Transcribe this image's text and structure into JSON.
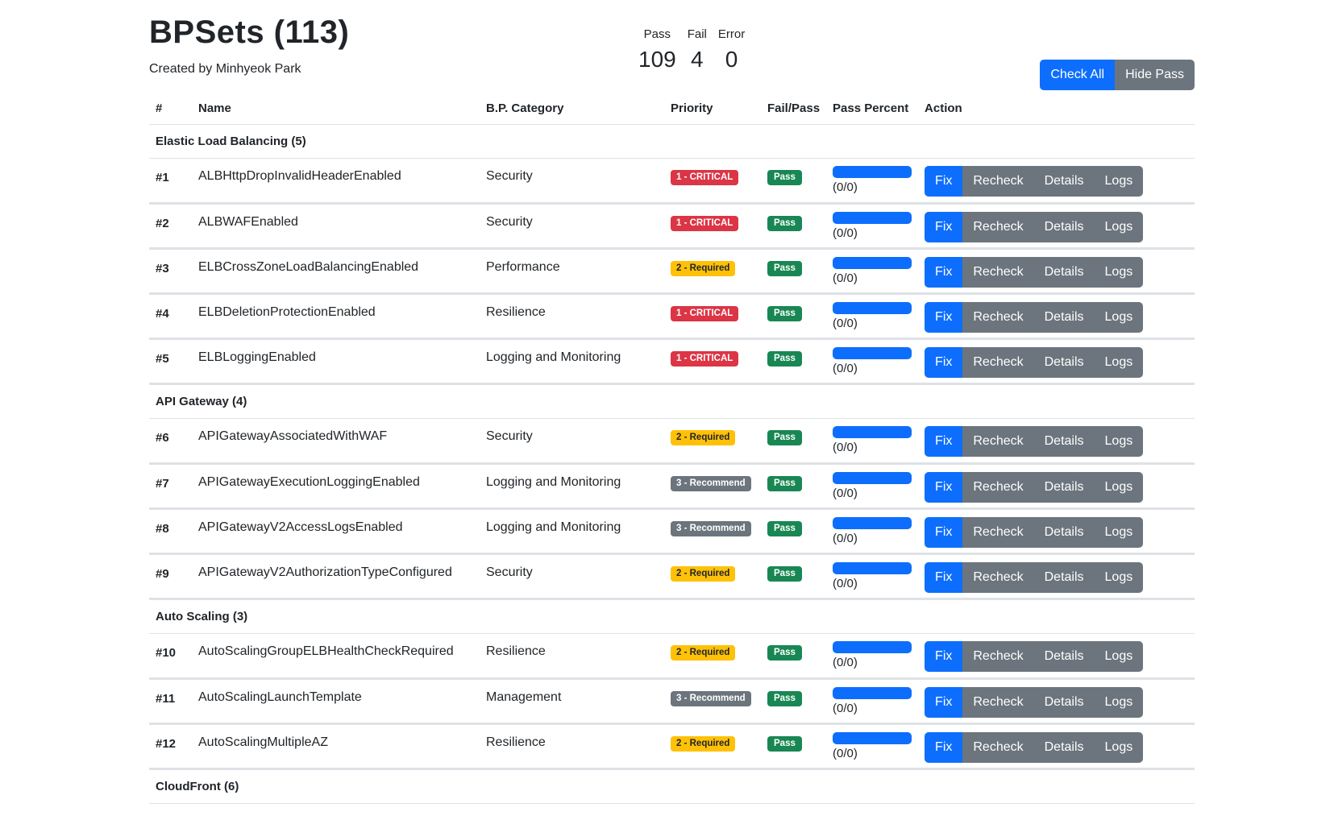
{
  "header": {
    "title": "BPSets (113)",
    "subtitle": "Created by Minhyeok Park",
    "stats": [
      {
        "label": "Pass",
        "value": "109"
      },
      {
        "label": "Fail",
        "value": "4"
      },
      {
        "label": "Error",
        "value": "0"
      }
    ],
    "check_all_label": "Check All",
    "hide_pass_label": "Hide Pass"
  },
  "columns": [
    "#",
    "Name",
    "B.P. Category",
    "Priority",
    "Fail/Pass",
    "Pass Percent",
    "Action"
  ],
  "action_labels": {
    "fix": "Fix",
    "recheck": "Recheck",
    "details": "Details",
    "logs": "Logs"
  },
  "colors": {
    "primary": "#0d6efd",
    "secondary": "#6c757d",
    "critical": "#dc3545",
    "required": "#ffc107",
    "recommend": "#6c757d",
    "pass": "#198754"
  },
  "groups": [
    {
      "name": "Elastic Load Balancing (5)",
      "rows": [
        {
          "idx": "#1",
          "name": "ALBHttpDropInvalidHeaderEnabled",
          "category": "Security",
          "priority": "1 - CRITICAL",
          "level": "crit",
          "status": "Pass",
          "pass_fraction": 1,
          "pct": "(0/0)"
        },
        {
          "idx": "#2",
          "name": "ALBWAFEnabled",
          "category": "Security",
          "priority": "1 - CRITICAL",
          "level": "crit",
          "status": "Pass",
          "pass_fraction": 1,
          "pct": "(0/0)"
        },
        {
          "idx": "#3",
          "name": "ELBCrossZoneLoadBalancingEnabled",
          "category": "Performance",
          "priority": "2 - Required",
          "level": "req",
          "status": "Pass",
          "pass_fraction": 1,
          "pct": "(0/0)"
        },
        {
          "idx": "#4",
          "name": "ELBDeletionProtectionEnabled",
          "category": "Resilience",
          "priority": "1 - CRITICAL",
          "level": "crit",
          "status": "Pass",
          "pass_fraction": 1,
          "pct": "(0/0)"
        },
        {
          "idx": "#5",
          "name": "ELBLoggingEnabled",
          "category": "Logging and Monitoring",
          "priority": "1 - CRITICAL",
          "level": "crit",
          "status": "Pass",
          "pass_fraction": 1,
          "pct": "(0/0)"
        }
      ]
    },
    {
      "name": "API Gateway (4)",
      "rows": [
        {
          "idx": "#6",
          "name": "APIGatewayAssociatedWithWAF",
          "category": "Security",
          "priority": "2 - Required",
          "level": "req",
          "status": "Pass",
          "pass_fraction": 1,
          "pct": "(0/0)"
        },
        {
          "idx": "#7",
          "name": "APIGatewayExecutionLoggingEnabled",
          "category": "Logging and Monitoring",
          "priority": "3 - Recommend",
          "level": "rec",
          "status": "Pass",
          "pass_fraction": 1,
          "pct": "(0/0)"
        },
        {
          "idx": "#8",
          "name": "APIGatewayV2AccessLogsEnabled",
          "category": "Logging and Monitoring",
          "priority": "3 - Recommend",
          "level": "rec",
          "status": "Pass",
          "pass_fraction": 1,
          "pct": "(0/0)"
        },
        {
          "idx": "#9",
          "name": "APIGatewayV2AuthorizationTypeConfigured",
          "category": "Security",
          "priority": "2 - Required",
          "level": "req",
          "status": "Pass",
          "pass_fraction": 1,
          "pct": "(0/0)"
        }
      ]
    },
    {
      "name": "Auto Scaling (3)",
      "rows": [
        {
          "idx": "#10",
          "name": "AutoScalingGroupELBHealthCheckRequired",
          "category": "Resilience",
          "priority": "2 - Required",
          "level": "req",
          "status": "Pass",
          "pass_fraction": 1,
          "pct": "(0/0)"
        },
        {
          "idx": "#11",
          "name": "AutoScalingLaunchTemplate",
          "category": "Management",
          "priority": "3 - Recommend",
          "level": "rec",
          "status": "Pass",
          "pass_fraction": 1,
          "pct": "(0/0)"
        },
        {
          "idx": "#12",
          "name": "AutoScalingMultipleAZ",
          "category": "Resilience",
          "priority": "2 - Required",
          "level": "req",
          "status": "Pass",
          "pass_fraction": 1,
          "pct": "(0/0)"
        }
      ]
    },
    {
      "name": "CloudFront (6)",
      "rows": []
    }
  ]
}
